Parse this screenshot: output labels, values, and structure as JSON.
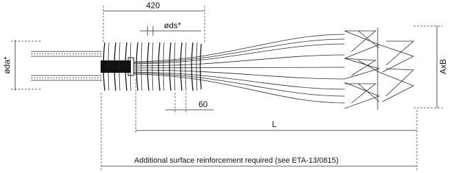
{
  "dimensions": {
    "length_420": "420",
    "spiral_diameter": "øds*",
    "duct_diameter": "øda*",
    "pitch": "60",
    "length_L": "L",
    "anchor_size": "AxB"
  },
  "note": "Additional surface reinforcement required (see ETA-13/0815)"
}
